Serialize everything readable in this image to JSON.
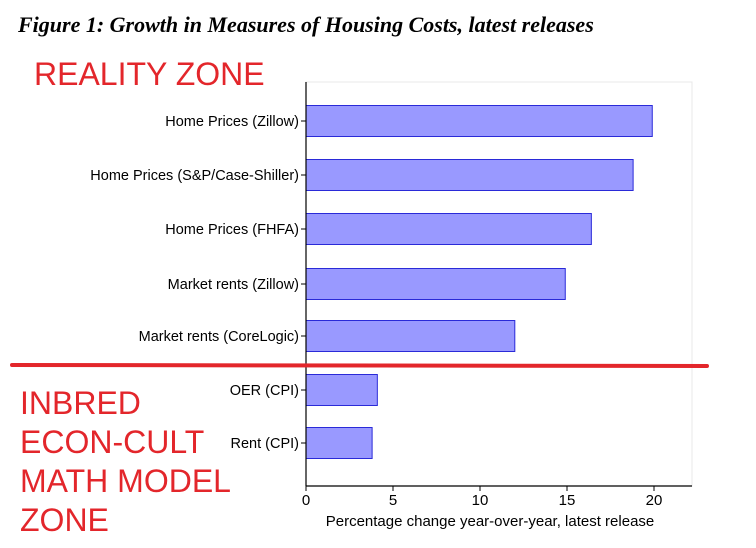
{
  "figure_title": "Figure 1: Growth in Measures of Housing Costs, latest releases",
  "annotations": {
    "upper_zone": "REALITY ZONE",
    "lower_zone_lines": [
      "INBRED",
      "ECON-CULT",
      "MATH MODEL",
      "ZONE"
    ],
    "color": "#e3262b"
  },
  "colors": {
    "bar_fill": "#9999ff",
    "bar_stroke": "#2a2ad8",
    "divider": "#e3262b"
  },
  "chart_data": {
    "type": "bar",
    "orientation": "horizontal",
    "categories": [
      "Home Prices (Zillow)",
      "Home Prices (S&P/Case-Shiller)",
      "Home Prices (FHFA)",
      "Market rents (Zillow)",
      "Market rents (CoreLogic)",
      "OER (CPI)",
      "Rent (CPI)"
    ],
    "values": [
      19.9,
      18.8,
      16.4,
      14.9,
      12.0,
      4.1,
      3.8
    ],
    "xlabel": "Percentage change year-over-year, latest release",
    "ylabel": "",
    "xticks": [
      0,
      5,
      10,
      15,
      20
    ],
    "xlim": [
      0,
      21
    ],
    "grid": false,
    "divider_between_categories": [
      4,
      5
    ]
  }
}
